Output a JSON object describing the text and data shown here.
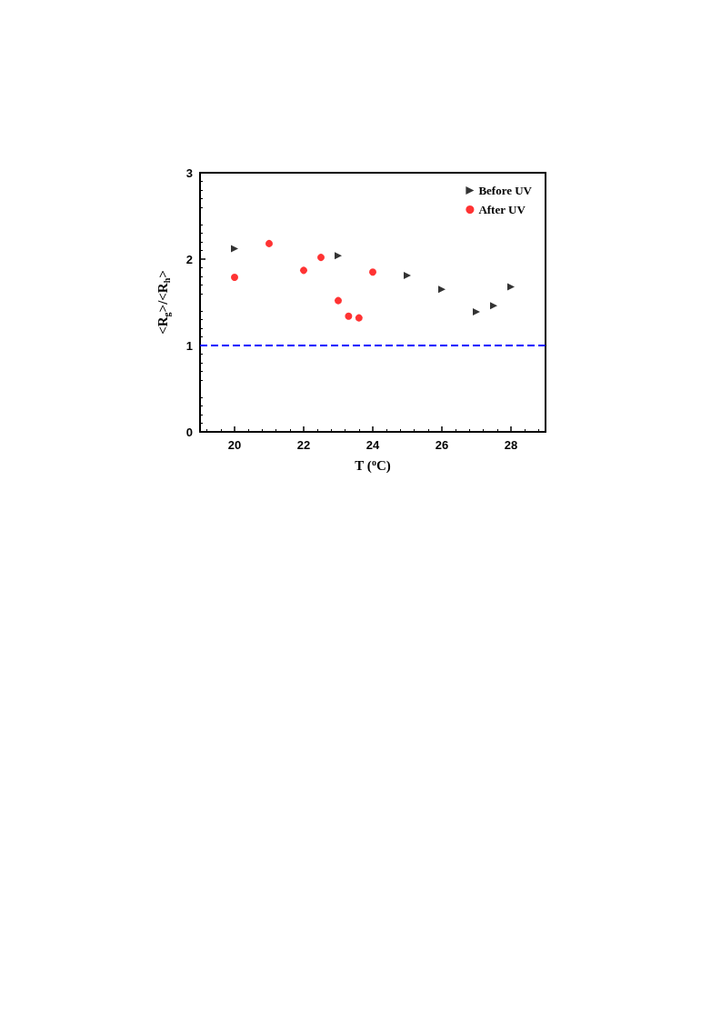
{
  "chart_data": {
    "type": "scatter",
    "xlabel": "T ($^{o}$C)",
    "ylabel": "<R$_{g}$>/<R$_{h}$>",
    "xlim": [
      19,
      29
    ],
    "xticks": [
      20,
      22,
      24,
      26,
      28
    ],
    "ylim": [
      0,
      3
    ],
    "yticks": [
      0,
      1,
      2,
      3
    ],
    "legend": "top right",
    "grid": false,
    "series": [
      {
        "name": "Before UV",
        "color": "#000000",
        "marker": "triangle",
        "x": [
          20,
          23,
          25,
          26,
          27,
          27.5,
          28
        ],
        "values": [
          2.12,
          2.04,
          1.81,
          1.65,
          1.39,
          1.46,
          1.68
        ]
      },
      {
        "name": "After UV",
        "color": "#ff0000",
        "marker": "circle",
        "x": [
          20,
          21,
          22,
          22.5,
          23,
          23.3,
          23.6,
          24
        ],
        "values": [
          1.79,
          2.18,
          1.87,
          2.02,
          1.52,
          1.34,
          1.32,
          1.85
        ]
      }
    ],
    "ref_lines": [
      {
        "axis": "y",
        "value": 1,
        "color": "#0000ff",
        "line_style": "dashed"
      }
    ]
  }
}
